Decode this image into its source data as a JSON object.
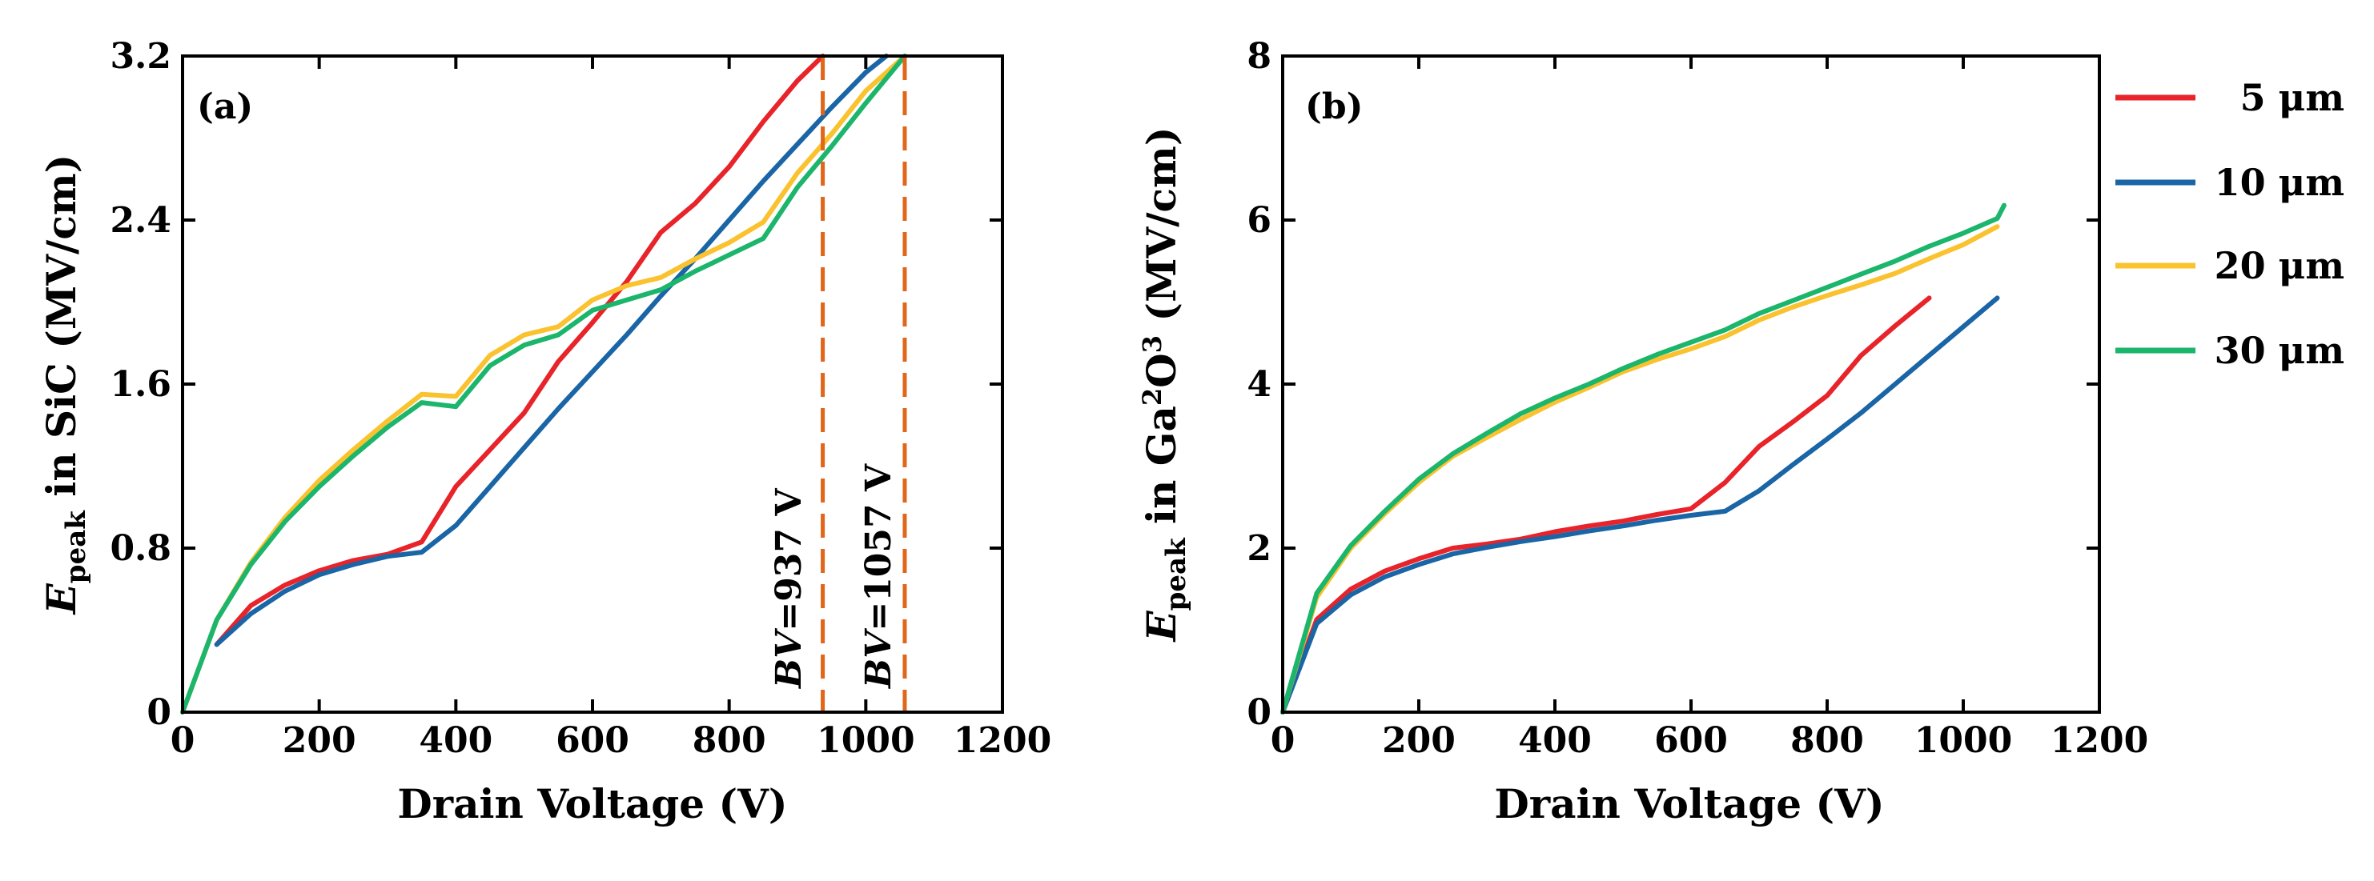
{
  "colors": {
    "5um": "#E8232A",
    "10um": "#1A65A6",
    "20um": "#F9C22E",
    "30um": "#1BB56B",
    "bv_line": "#E1661A"
  },
  "legend": [
    {
      "key": "5um",
      "label": "5 μm"
    },
    {
      "key": "10um",
      "label": "10 μm"
    },
    {
      "key": "20um",
      "label": "20 μm"
    },
    {
      "key": "30um",
      "label": "30 μm"
    }
  ],
  "chart_data": [
    {
      "id": "a",
      "type": "line",
      "panel_label": "(a)",
      "title": "",
      "xlabel": "Drain Voltage (V)",
      "ylabel": {
        "main": "E",
        "sub": "peak",
        "rest": " in SiC (MV/cm)"
      },
      "xlim": [
        0,
        1200
      ],
      "ylim": [
        0,
        3.2
      ],
      "xticks": [
        0,
        200,
        400,
        600,
        800,
        1000,
        1200
      ],
      "yticks": [
        0,
        0.8,
        1.6,
        2.4,
        3.2
      ],
      "xtick_labels": [
        "0",
        "200",
        "400",
        "600",
        "800",
        "1000",
        "1200"
      ],
      "ytick_labels": [
        "0",
        "0.8",
        "1.6",
        "2.4",
        "3.2"
      ],
      "vlines": [
        {
          "x": 937,
          "label_italic": "BV",
          "label_rest": "=937 V"
        },
        {
          "x": 1057,
          "label_italic": "BV",
          "label_rest": "=1057 V"
        }
      ],
      "series": [
        {
          "key": "5um",
          "name": "5 μm",
          "x": [
            50,
            100,
            150,
            200,
            250,
            300,
            350,
            400,
            450,
            500,
            550,
            600,
            650,
            700,
            750,
            800,
            850,
            900,
            937
          ],
          "y": [
            0.33,
            0.52,
            0.62,
            0.69,
            0.74,
            0.77,
            0.83,
            1.1,
            1.28,
            1.46,
            1.71,
            1.9,
            2.1,
            2.34,
            2.48,
            2.66,
            2.88,
            3.08,
            3.2
          ]
        },
        {
          "key": "10um",
          "name": "10 μm",
          "x": [
            50,
            100,
            150,
            200,
            250,
            300,
            350,
            400,
            450,
            500,
            550,
            600,
            650,
            700,
            750,
            800,
            850,
            900,
            950,
            1000,
            1030
          ],
          "y": [
            0.33,
            0.48,
            0.59,
            0.67,
            0.72,
            0.76,
            0.78,
            0.91,
            1.1,
            1.29,
            1.48,
            1.66,
            1.84,
            2.03,
            2.21,
            2.4,
            2.59,
            2.77,
            2.95,
            3.12,
            3.2
          ]
        },
        {
          "key": "20um",
          "name": "20 μm",
          "x": [
            0,
            50,
            100,
            150,
            200,
            250,
            300,
            350,
            400,
            450,
            500,
            550,
            600,
            650,
            700,
            750,
            800,
            850,
            900,
            950,
            1000,
            1057
          ],
          "y": [
            0.0,
            0.45,
            0.73,
            0.95,
            1.13,
            1.28,
            1.42,
            1.55,
            1.54,
            1.74,
            1.84,
            1.88,
            2.01,
            2.08,
            2.12,
            2.21,
            2.29,
            2.39,
            2.63,
            2.82,
            3.03,
            3.2
          ]
        },
        {
          "key": "30um",
          "name": "30 μm",
          "x": [
            0,
            50,
            100,
            150,
            200,
            250,
            300,
            350,
            400,
            450,
            500,
            550,
            600,
            650,
            700,
            750,
            800,
            850,
            900,
            950,
            1000,
            1057
          ],
          "y": [
            0.0,
            0.45,
            0.72,
            0.93,
            1.1,
            1.25,
            1.39,
            1.51,
            1.49,
            1.69,
            1.79,
            1.84,
            1.96,
            2.01,
            2.06,
            2.15,
            2.23,
            2.31,
            2.56,
            2.76,
            2.97,
            3.2
          ]
        }
      ]
    },
    {
      "id": "b",
      "type": "line",
      "panel_label": "(b)",
      "title": "",
      "xlabel": "Drain Voltage (V)",
      "ylabel": {
        "main": "E",
        "sub": "peak",
        "rest": " in Ga",
        "sup1": "2",
        "mid": "O",
        "sup2": "3",
        "rest2": " (MV/cm)"
      },
      "xlim": [
        0,
        1200
      ],
      "ylim": [
        0,
        8
      ],
      "xticks": [
        0,
        200,
        400,
        600,
        800,
        1000,
        1200
      ],
      "yticks": [
        0,
        2,
        4,
        6,
        8
      ],
      "xtick_labels": [
        "0",
        "200",
        "400",
        "600",
        "800",
        "1000",
        "1200"
      ],
      "ytick_labels": [
        "0",
        "2",
        "4",
        "6",
        "8"
      ],
      "series": [
        {
          "key": "5um",
          "name": "5 μm",
          "x": [
            0,
            50,
            100,
            150,
            200,
            250,
            300,
            350,
            400,
            450,
            500,
            550,
            600,
            650,
            700,
            750,
            800,
            850,
            900,
            950
          ],
          "y": [
            0.0,
            1.13,
            1.5,
            1.72,
            1.87,
            2.0,
            2.05,
            2.11,
            2.2,
            2.27,
            2.33,
            2.41,
            2.48,
            2.8,
            3.24,
            3.54,
            3.86,
            4.35,
            4.71,
            5.05
          ]
        },
        {
          "key": "10um",
          "name": "10 μm",
          "x": [
            0,
            50,
            100,
            150,
            200,
            250,
            300,
            350,
            400,
            450,
            500,
            550,
            600,
            650,
            700,
            750,
            800,
            850,
            900,
            950,
            1000,
            1050
          ],
          "y": [
            0.0,
            1.08,
            1.43,
            1.65,
            1.8,
            1.93,
            2.01,
            2.08,
            2.14,
            2.21,
            2.27,
            2.34,
            2.4,
            2.45,
            2.7,
            3.02,
            3.33,
            3.65,
            4.0,
            4.35,
            4.7,
            5.05
          ]
        },
        {
          "key": "20um",
          "name": "20 μm",
          "x": [
            0,
            50,
            100,
            150,
            200,
            250,
            300,
            350,
            400,
            450,
            500,
            550,
            600,
            650,
            700,
            750,
            800,
            850,
            900,
            950,
            1000,
            1050
          ],
          "y": [
            0.0,
            1.4,
            2.0,
            2.42,
            2.8,
            3.12,
            3.35,
            3.57,
            3.78,
            3.96,
            4.15,
            4.3,
            4.43,
            4.58,
            4.78,
            4.94,
            5.08,
            5.21,
            5.35,
            5.53,
            5.7,
            5.92
          ]
        },
        {
          "key": "30um",
          "name": "30 μm",
          "x": [
            0,
            50,
            100,
            150,
            200,
            250,
            300,
            350,
            400,
            450,
            500,
            550,
            600,
            650,
            700,
            750,
            800,
            850,
            900,
            950,
            1000,
            1050,
            1060
          ],
          "y": [
            0.0,
            1.45,
            2.03,
            2.45,
            2.84,
            3.15,
            3.4,
            3.64,
            3.83,
            4.0,
            4.19,
            4.36,
            4.51,
            4.66,
            4.86,
            5.02,
            5.18,
            5.34,
            5.5,
            5.68,
            5.84,
            6.02,
            6.18
          ]
        }
      ]
    }
  ]
}
